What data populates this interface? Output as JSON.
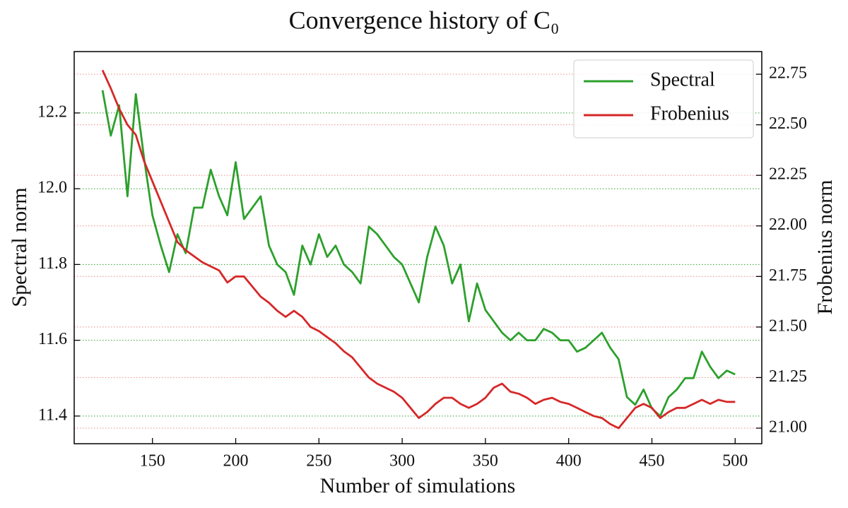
{
  "chart_data": {
    "type": "line",
    "title": "Convergence history of C₀",
    "x_label": "Number of simulations",
    "y_label": "Spectral norm",
    "y2_label": "Frobenius norm",
    "x": [
      120,
      125,
      130,
      135,
      140,
      145,
      150,
      155,
      160,
      165,
      170,
      175,
      180,
      185,
      190,
      195,
      200,
      205,
      210,
      215,
      220,
      225,
      230,
      235,
      240,
      245,
      250,
      255,
      260,
      265,
      270,
      275,
      280,
      285,
      290,
      295,
      300,
      305,
      310,
      315,
      320,
      325,
      330,
      335,
      340,
      345,
      350,
      355,
      360,
      365,
      370,
      375,
      380,
      385,
      390,
      395,
      400,
      405,
      410,
      415,
      420,
      425,
      430,
      435,
      440,
      445,
      450,
      455,
      460,
      465,
      470,
      475,
      480,
      485,
      490,
      495,
      500
    ],
    "series": [
      {
        "name": "Spectral",
        "color": "#2ca02c",
        "axis": "y",
        "values": [
          12.26,
          12.14,
          12.22,
          11.98,
          12.25,
          12.08,
          11.93,
          11.85,
          11.78,
          11.88,
          11.83,
          11.95,
          11.95,
          12.05,
          11.98,
          11.93,
          12.07,
          11.92,
          11.95,
          11.98,
          11.85,
          11.8,
          11.78,
          11.72,
          11.85,
          11.8,
          11.88,
          11.82,
          11.85,
          11.8,
          11.78,
          11.75,
          11.9,
          11.88,
          11.85,
          11.82,
          11.8,
          11.75,
          11.7,
          11.82,
          11.9,
          11.85,
          11.75,
          11.8,
          11.65,
          11.75,
          11.68,
          11.65,
          11.62,
          11.6,
          11.62,
          11.6,
          11.6,
          11.63,
          11.62,
          11.6,
          11.6,
          11.57,
          11.58,
          11.6,
          11.62,
          11.58,
          11.55,
          11.45,
          11.43,
          11.47,
          11.42,
          11.4,
          11.45,
          11.47,
          11.5,
          11.5,
          11.57,
          11.53,
          11.5,
          11.52,
          11.51
        ]
      },
      {
        "name": "Frobenius",
        "color": "#d62728",
        "axis": "y2",
        "values": [
          22.77,
          22.68,
          22.58,
          22.5,
          22.45,
          22.32,
          22.22,
          22.12,
          22.02,
          21.92,
          21.88,
          21.85,
          21.82,
          21.8,
          21.78,
          21.72,
          21.75,
          21.75,
          21.7,
          21.65,
          21.62,
          21.58,
          21.55,
          21.58,
          21.55,
          21.5,
          21.48,
          21.45,
          21.42,
          21.38,
          21.35,
          21.3,
          21.25,
          21.22,
          21.2,
          21.18,
          21.15,
          21.1,
          21.05,
          21.08,
          21.12,
          21.15,
          21.15,
          21.12,
          21.1,
          21.12,
          21.15,
          21.2,
          21.22,
          21.18,
          21.17,
          21.15,
          21.12,
          21.14,
          21.15,
          21.13,
          21.12,
          21.1,
          21.08,
          21.06,
          21.05,
          21.02,
          21.0,
          21.05,
          21.1,
          21.12,
          21.1,
          21.05,
          21.08,
          21.1,
          21.1,
          21.12,
          21.14,
          21.12,
          21.14,
          21.13,
          21.13
        ]
      }
    ],
    "xlim": [
      103,
      516
    ],
    "xticks": [
      150,
      200,
      250,
      300,
      350,
      400,
      450,
      500
    ],
    "ylim": [
      11.327,
      12.362
    ],
    "yticks": [
      11.4,
      11.6,
      11.8,
      {
        "value": 12,
        "label": "12.0"
      },
      12.2
    ],
    "y2lim": [
      20.923,
      22.862
    ],
    "y2ticks": [
      {
        "value": 21,
        "label": "21.00"
      },
      21.25,
      {
        "value": 21.5,
        "label": "21.50"
      },
      21.75,
      {
        "value": 22,
        "label": "22.00"
      },
      22.25,
      {
        "value": 22.5,
        "label": "22.50"
      },
      22.75
    ],
    "grid": true,
    "legend": "upper right"
  }
}
